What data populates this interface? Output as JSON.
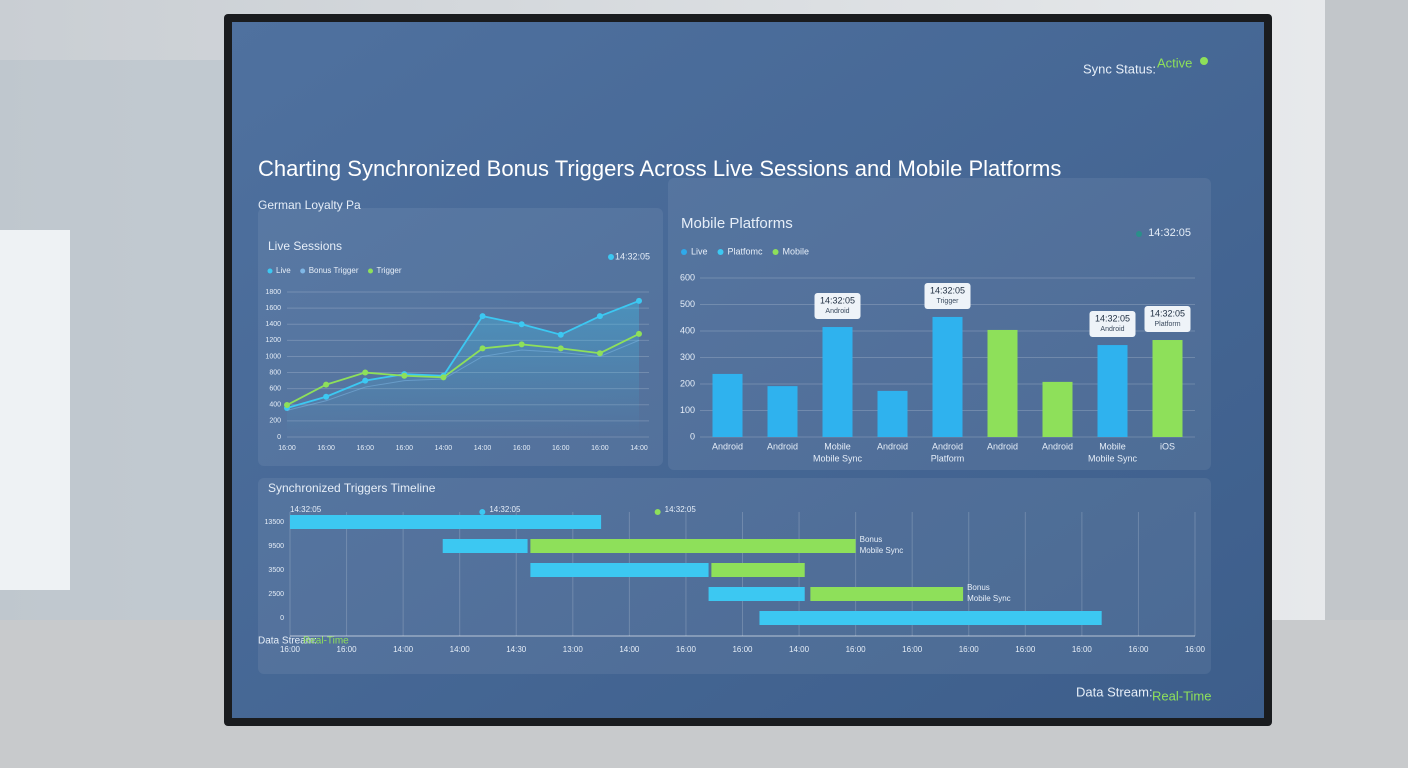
{
  "header": {
    "sync_label": "Sync Status:",
    "sync_value": "Active",
    "title": "Charting Synchronized Bonus Triggers Across Live Sessions and Mobile Platforms",
    "subtitle": "German Loyalty Pa"
  },
  "footer": {
    "label": "Data Stream:",
    "value": "Real-Time"
  },
  "chart_data": [
    {
      "type": "line",
      "title": "Live Sessions",
      "time": "14:32:05",
      "categories": [
        "16:00",
        "16:00",
        "16:00",
        "16:00",
        "14:00",
        "14:00",
        "16:00",
        "16:00",
        "16:00",
        "14:00"
      ],
      "series": [
        {
          "name": "Live",
          "color": "#3cc8f2",
          "values": [
            360,
            500,
            700,
            780,
            760,
            1500,
            1400,
            1270,
            1500,
            1690
          ]
        },
        {
          "name": "Bonus Trigger",
          "color": "#7fb7e6",
          "values": [
            330,
            450,
            620,
            700,
            720,
            1000,
            1080,
            1050,
            1000,
            1200
          ]
        },
        {
          "name": "Trigger",
          "color": "#8ee05a",
          "values": [
            397,
            650,
            800,
            760,
            740,
            1100,
            1150,
            1100,
            1040,
            1280
          ]
        }
      ],
      "ylim": [
        0,
        1800
      ],
      "yticks": [
        0,
        200,
        400,
        600,
        800,
        1000,
        1200,
        1400,
        1600,
        1800
      ],
      "grid": true
    },
    {
      "type": "bar",
      "title": "Mobile Platforms",
      "time": "14:32:05",
      "legend": [
        {
          "name": "Live",
          "color": "#2fa9ea"
        },
        {
          "name": "Platfomc",
          "color": "#3cc8f2"
        },
        {
          "name": "Mobile",
          "color": "#8ee05a"
        }
      ],
      "categories": [
        [
          "Android"
        ],
        [
          "Android"
        ],
        [
          "Mobile",
          "Mobile Sync"
        ],
        [
          "Android"
        ],
        [
          "Android",
          "Platform"
        ],
        [
          "Android"
        ],
        [
          "Android"
        ],
        [
          "Mobile",
          "Mobile Sync"
        ],
        [
          "iOS"
        ]
      ],
      "values": [
        238,
        192,
        415,
        174,
        453,
        404,
        208,
        347,
        366
      ],
      "colors": [
        "#2fb2ee",
        "#2fb2ee",
        "#2fb2ee",
        "#2fb2ee",
        "#2fb2ee",
        "#8ee05a",
        "#8ee05a",
        "#2fb2ee",
        "#8ee05a"
      ],
      "tooltips": [
        null,
        null,
        {
          "time": "14:32:05",
          "label": "Android"
        },
        null,
        {
          "time": "14:32:05",
          "label": "Trigger"
        },
        null,
        null,
        {
          "time": "14:32:05",
          "label": "Android"
        },
        {
          "time": "14:32:05",
          "label": "Platform"
        }
      ],
      "ylim": [
        0,
        600
      ],
      "yticks": [
        0,
        100,
        200,
        300,
        400,
        500,
        600
      ],
      "grid": true
    },
    {
      "type": "gantt",
      "title": "Synchronized Triggers Timeline",
      "rows": [
        "13500",
        "9500",
        "3500",
        "2500",
        "0"
      ],
      "xlim": [
        0,
        16
      ],
      "xticks": [
        {
          "value": 0,
          "label": "16:00"
        },
        {
          "value": 1,
          "label": "16:00"
        },
        {
          "value": 2,
          "label": "14:00"
        },
        {
          "value": 3,
          "label": "14:00"
        },
        {
          "value": 4,
          "label": "14:30"
        },
        {
          "value": 5,
          "label": "13:00"
        },
        {
          "value": 6,
          "label": "14:00"
        },
        {
          "value": 7,
          "label": "16:00"
        },
        {
          "value": 8,
          "label": "16:00"
        },
        {
          "value": 9,
          "label": "14:00"
        },
        {
          "value": 10,
          "label": "16:00"
        },
        {
          "value": 11,
          "label": "16:00"
        },
        {
          "value": 12,
          "label": "16:00"
        },
        {
          "value": 13,
          "label": "16:00"
        },
        {
          "value": 14,
          "label": "16:00"
        },
        {
          "value": 15,
          "label": "16:00"
        },
        {
          "value": 16,
          "label": "16:00"
        }
      ],
      "markers": [
        {
          "x": 0,
          "label": "14:32:05",
          "color": "#3cc8f2"
        },
        {
          "x": 3.4,
          "label": "14:32:05",
          "color": "#3cc8f2"
        },
        {
          "x": 6.5,
          "label": "14:32:05",
          "color": "#8ee05a"
        }
      ],
      "tasks": [
        {
          "row": 0,
          "start": 0,
          "end": 5.5,
          "color": "#3cc8f2"
        },
        {
          "row": 1,
          "start": 2.7,
          "end": 4.2,
          "color": "#3cc8f2"
        },
        {
          "row": 1,
          "start": 4.25,
          "end": 10,
          "color": "#8ee05a",
          "label": [
            "Bonus",
            "Mobile Sync"
          ]
        },
        {
          "row": 2,
          "start": 4.25,
          "end": 7.4,
          "color": "#3cc8f2"
        },
        {
          "row": 2,
          "start": 7.45,
          "end": 9.1,
          "color": "#8ee05a"
        },
        {
          "row": 3,
          "start": 7.4,
          "end": 9.1,
          "color": "#3cc8f2"
        },
        {
          "row": 3,
          "start": 9.2,
          "end": 11.9,
          "color": "#8ee05a",
          "label": [
            "Bonus",
            "Mobile Sync"
          ]
        },
        {
          "row": 4,
          "start": 8.3,
          "end": 14.35,
          "color": "#3cc8f2"
        }
      ]
    }
  ]
}
